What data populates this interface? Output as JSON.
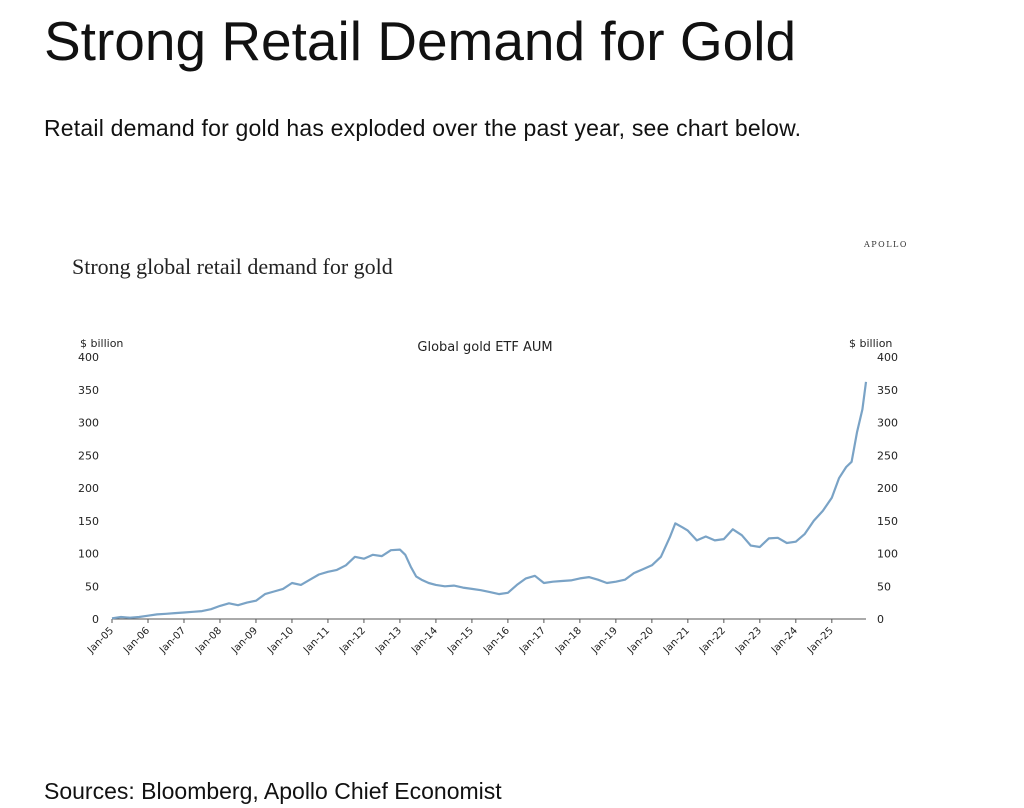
{
  "header": {
    "title": "Strong Retail Demand for Gold",
    "subtitle": "Retail demand for gold has exploded over the past year, see chart below."
  },
  "brand": "APOLLO",
  "footer": {
    "sources": "Sources: Bloomberg, Apollo Chief Economist"
  },
  "colors": {
    "line": "#7aa3c6",
    "axis": "#555555",
    "text": "#222222"
  },
  "chart_data": {
    "type": "line",
    "title": "Strong global retail demand for gold",
    "subtitle": "Global gold ETF AUM",
    "ylabel_left": "$ billion",
    "ylabel_right": "$ billion",
    "ylim": [
      0,
      400
    ],
    "yticks": [
      0,
      50,
      100,
      150,
      200,
      250,
      300,
      350,
      400
    ],
    "grid": false,
    "legend": "none",
    "xlim": [
      2005.0,
      2025.95
    ],
    "x_tick_labels": [
      "Jan-05",
      "Jan-06",
      "Jan-07",
      "Jan-08",
      "Jan-09",
      "Jan-10",
      "Jan-11",
      "Jan-12",
      "Jan-13",
      "Jan-14",
      "Jan-15",
      "Jan-16",
      "Jan-17",
      "Jan-18",
      "Jan-19",
      "Jan-20",
      "Jan-21",
      "Jan-22",
      "Jan-23",
      "Jan-24",
      "Jan-25"
    ],
    "series": [
      {
        "name": "",
        "points": [
          [
            2005.0,
            1
          ],
          [
            2005.25,
            3
          ],
          [
            2005.5,
            2
          ],
          [
            2005.75,
            3
          ],
          [
            2006.0,
            5
          ],
          [
            2006.25,
            7
          ],
          [
            2006.5,
            8
          ],
          [
            2006.75,
            9
          ],
          [
            2007.0,
            10
          ],
          [
            2007.25,
            11
          ],
          [
            2007.5,
            12
          ],
          [
            2007.75,
            15
          ],
          [
            2008.0,
            20
          ],
          [
            2008.25,
            24
          ],
          [
            2008.5,
            21
          ],
          [
            2008.75,
            25
          ],
          [
            2009.0,
            28
          ],
          [
            2009.25,
            38
          ],
          [
            2009.5,
            42
          ],
          [
            2009.75,
            46
          ],
          [
            2010.0,
            55
          ],
          [
            2010.25,
            52
          ],
          [
            2010.5,
            60
          ],
          [
            2010.75,
            68
          ],
          [
            2011.0,
            72
          ],
          [
            2011.25,
            75
          ],
          [
            2011.5,
            82
          ],
          [
            2011.75,
            95
          ],
          [
            2012.0,
            92
          ],
          [
            2012.25,
            98
          ],
          [
            2012.5,
            96
          ],
          [
            2012.75,
            105
          ],
          [
            2013.0,
            106
          ],
          [
            2013.15,
            98
          ],
          [
            2013.3,
            80
          ],
          [
            2013.45,
            65
          ],
          [
            2013.6,
            60
          ],
          [
            2013.8,
            55
          ],
          [
            2014.0,
            52
          ],
          [
            2014.25,
            50
          ],
          [
            2014.5,
            51
          ],
          [
            2014.75,
            48
          ],
          [
            2015.0,
            46
          ],
          [
            2015.25,
            44
          ],
          [
            2015.5,
            41
          ],
          [
            2015.75,
            38
          ],
          [
            2016.0,
            40
          ],
          [
            2016.25,
            52
          ],
          [
            2016.5,
            62
          ],
          [
            2016.75,
            66
          ],
          [
            2017.0,
            55
          ],
          [
            2017.25,
            57
          ],
          [
            2017.5,
            58
          ],
          [
            2017.75,
            59
          ],
          [
            2018.0,
            62
          ],
          [
            2018.25,
            64
          ],
          [
            2018.5,
            60
          ],
          [
            2018.75,
            55
          ],
          [
            2019.0,
            57
          ],
          [
            2019.25,
            60
          ],
          [
            2019.5,
            70
          ],
          [
            2019.75,
            76
          ],
          [
            2020.0,
            82
          ],
          [
            2020.25,
            95
          ],
          [
            2020.5,
            125
          ],
          [
            2020.65,
            146
          ],
          [
            2020.85,
            140
          ],
          [
            2021.0,
            135
          ],
          [
            2021.25,
            120
          ],
          [
            2021.5,
            126
          ],
          [
            2021.75,
            120
          ],
          [
            2022.0,
            122
          ],
          [
            2022.25,
            137
          ],
          [
            2022.5,
            128
          ],
          [
            2022.75,
            112
          ],
          [
            2023.0,
            110
          ],
          [
            2023.25,
            123
          ],
          [
            2023.5,
            124
          ],
          [
            2023.75,
            116
          ],
          [
            2024.0,
            118
          ],
          [
            2024.25,
            130
          ],
          [
            2024.5,
            150
          ],
          [
            2024.75,
            165
          ],
          [
            2025.0,
            185
          ],
          [
            2025.2,
            215
          ],
          [
            2025.4,
            232
          ],
          [
            2025.55,
            240
          ],
          [
            2025.7,
            285
          ],
          [
            2025.85,
            320
          ],
          [
            2025.95,
            362
          ]
        ]
      }
    ]
  }
}
